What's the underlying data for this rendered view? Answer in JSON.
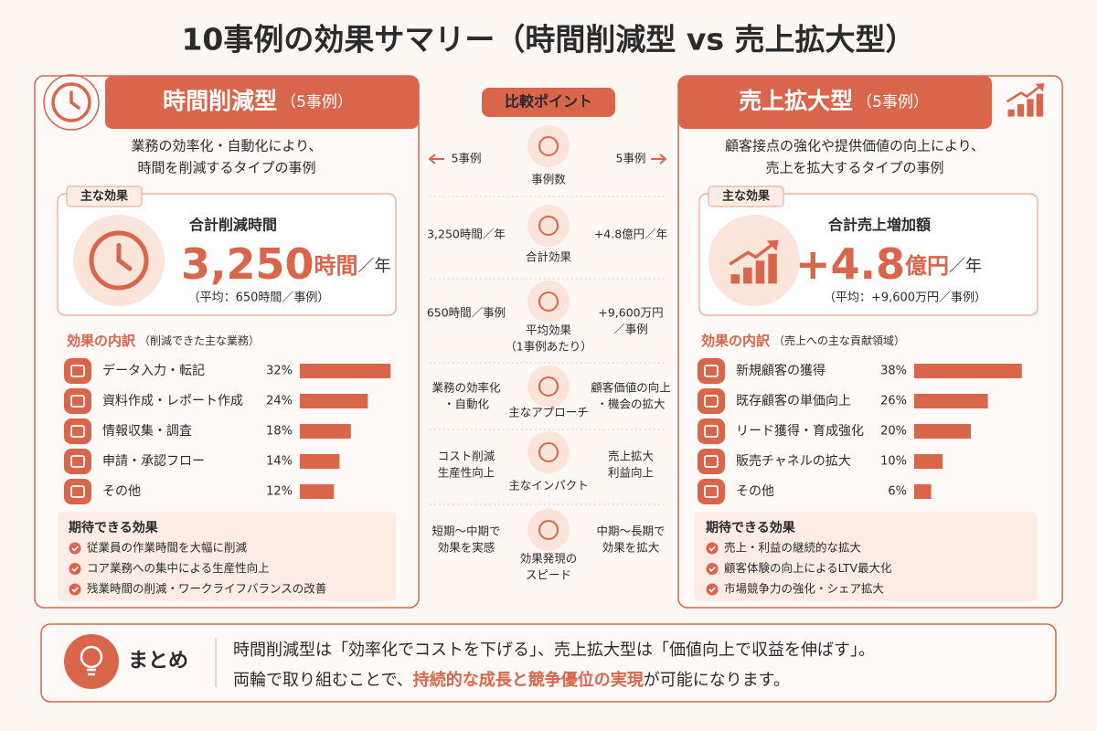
{
  "title": "10事例の効果サマリー（時間削減型 vs 売上拡大型）",
  "left": {
    "heading": "時間削減型",
    "count": "（5事例）",
    "description": [
      "業務の効率化・自動化により、",
      "時間を削減するタイプの事例"
    ],
    "main_effect": {
      "tag": "主な効果",
      "label": "合計削減時間",
      "value": "3,250",
      "unit": "時間",
      "per": "／年",
      "note": "（平均：650時間／事例）"
    },
    "breakdown": {
      "title": "効果の内訳",
      "subtitle": "（削減できた主な業務）",
      "labels": [
        "データ入力・転記",
        "資料作成・レポート作成",
        "情報収集・調査",
        "申請・承認フロー",
        "その他"
      ],
      "values": [
        32,
        24,
        18,
        14,
        12
      ],
      "value_labels": [
        "32%",
        "24%",
        "18%",
        "14%",
        "12%"
      ]
    },
    "expected": {
      "title": "期待できる効果",
      "items": [
        "従業員の作業時間を大幅に削減",
        "コア業務への集中による生産性向上",
        "残業時間の削減・ワークライフバランスの改善"
      ]
    }
  },
  "right": {
    "heading": "売上拡大型",
    "count": "（5事例）",
    "description": [
      "顧客接点の強化や提供価値の向上により、",
      "売上を拡大するタイプの事例"
    ],
    "main_effect": {
      "tag": "主な効果",
      "label": "合計売上増加額",
      "value": "+4.8",
      "unit": "億円",
      "per": "／年",
      "note": "（平均：+9,600万円／事例）"
    },
    "breakdown": {
      "title": "効果の内訳",
      "subtitle": "（売上への主な貢献領域）",
      "labels": [
        "新規顧客の獲得",
        "既存顧客の単価向上",
        "リード獲得・育成強化",
        "販売チャネルの拡大",
        "その他"
      ],
      "values": [
        38,
        26,
        20,
        10,
        6
      ],
      "value_labels": [
        "38%",
        "26%",
        "20%",
        "10%",
        "6%"
      ]
    },
    "expected": {
      "title": "期待できる効果",
      "items": [
        "売上・利益の継続的な拡大",
        "顧客体験の向上によるLTV最大化",
        "市場競争力の強化・シェア拡大"
      ]
    }
  },
  "comparison": {
    "title": "比較ポイント",
    "rows": [
      {
        "label": [
          "事例数"
        ],
        "left": [
          "5事例"
        ],
        "right": [
          "5事例"
        ]
      },
      {
        "label": [
          "合計効果"
        ],
        "left": [
          "3,250時間／年"
        ],
        "right": [
          "+4.8億円／年"
        ]
      },
      {
        "label": [
          "平均効果",
          "（1事例あたり）"
        ],
        "left": [
          "650時間／事例"
        ],
        "right": [
          "+9,600万円",
          "／事例"
        ]
      },
      {
        "label": [
          "主なアプローチ"
        ],
        "left": [
          "業務の効率化",
          "・自動化"
        ],
        "right": [
          "顧客価値の向上",
          "・機会の拡大"
        ]
      },
      {
        "label": [
          "主なインパクト"
        ],
        "left": [
          "コスト削減",
          "生産性向上"
        ],
        "right": [
          "売上拡大",
          "利益向上"
        ]
      },
      {
        "label": [
          "効果発現の",
          "スピード"
        ],
        "left": [
          "短期〜中期で",
          "効果を実感"
        ],
        "right": [
          "中期〜長期で",
          "効果を拡大"
        ]
      }
    ]
  },
  "summary": {
    "label": "まとめ",
    "line1": "時間削減型は「効率化でコストを下げる」、売上拡大型は「価値向上で収益を伸ばす」。",
    "line2_before": "両輪で取り組むことで、",
    "line2_highlight": "持続的な成長と競争優位の実現",
    "line2_after": "が可能になります。"
  }
}
